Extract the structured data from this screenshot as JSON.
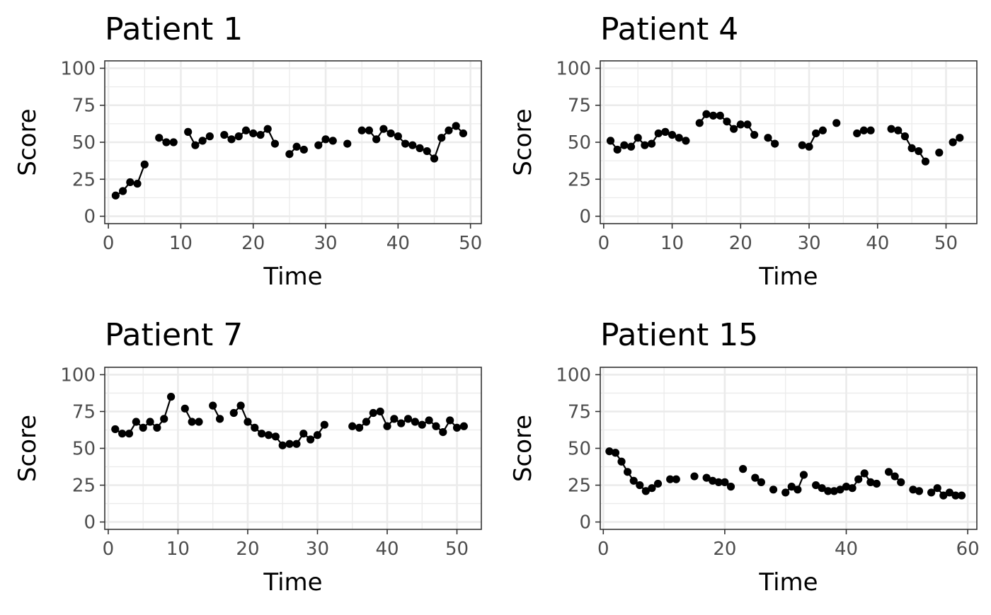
{
  "chart_data": [
    {
      "type": "line",
      "title": "Patient 1",
      "xlabel": "Time",
      "ylabel": "Score",
      "xlim": [
        -0.5,
        51.5
      ],
      "ylim": [
        -5,
        105
      ],
      "xticks": [
        0,
        10,
        20,
        30,
        40,
        50
      ],
      "yticks": [
        0,
        25,
        50,
        75,
        100
      ],
      "grid": true,
      "points": [
        [
          1,
          14
        ],
        [
          2,
          17
        ],
        [
          3,
          23
        ],
        [
          4,
          22
        ],
        [
          5,
          35
        ],
        [
          7,
          53
        ],
        [
          8,
          50
        ],
        [
          9,
          50
        ],
        [
          11,
          57
        ],
        [
          12,
          48
        ],
        [
          13,
          51
        ],
        [
          14,
          54
        ],
        [
          16,
          55
        ],
        [
          17,
          52
        ],
        [
          18,
          54
        ],
        [
          19,
          58
        ],
        [
          20,
          56
        ],
        [
          21,
          55
        ],
        [
          22,
          59
        ],
        [
          23,
          49
        ],
        [
          25,
          42
        ],
        [
          26,
          47
        ],
        [
          27,
          45
        ],
        [
          29,
          48
        ],
        [
          30,
          52
        ],
        [
          31,
          51
        ],
        [
          33,
          49
        ],
        [
          35,
          58
        ],
        [
          36,
          58
        ],
        [
          37,
          52
        ],
        [
          38,
          59
        ],
        [
          39,
          56
        ],
        [
          40,
          54
        ],
        [
          41,
          49
        ],
        [
          42,
          48
        ],
        [
          43,
          46
        ],
        [
          44,
          44
        ],
        [
          45,
          39
        ],
        [
          46,
          53
        ],
        [
          47,
          58
        ],
        [
          48,
          61
        ],
        [
          49,
          56
        ]
      ]
    },
    {
      "type": "line",
      "title": "Patient 4",
      "xlabel": "Time",
      "ylabel": "Score",
      "xlim": [
        -0.5,
        54.5
      ],
      "ylim": [
        -5,
        105
      ],
      "xticks": [
        0,
        10,
        20,
        30,
        40,
        50
      ],
      "yticks": [
        0,
        25,
        50,
        75,
        100
      ],
      "grid": true,
      "points": [
        [
          1,
          51
        ],
        [
          2,
          45
        ],
        [
          3,
          48
        ],
        [
          4,
          47
        ],
        [
          5,
          53
        ],
        [
          6,
          48
        ],
        [
          7,
          49
        ],
        [
          8,
          56
        ],
        [
          9,
          57
        ],
        [
          10,
          55
        ],
        [
          11,
          53
        ],
        [
          12,
          51
        ],
        [
          14,
          63
        ],
        [
          15,
          69
        ],
        [
          16,
          68
        ],
        [
          17,
          68
        ],
        [
          18,
          64
        ],
        [
          19,
          59
        ],
        [
          20,
          62
        ],
        [
          21,
          62
        ],
        [
          22,
          55
        ],
        [
          24,
          53
        ],
        [
          25,
          49
        ],
        [
          29,
          48
        ],
        [
          30,
          47
        ],
        [
          31,
          56
        ],
        [
          32,
          58
        ],
        [
          34,
          63
        ],
        [
          37,
          56
        ],
        [
          38,
          58
        ],
        [
          39,
          58
        ],
        [
          42,
          59
        ],
        [
          43,
          58
        ],
        [
          44,
          54
        ],
        [
          45,
          46
        ],
        [
          46,
          44
        ],
        [
          47,
          37
        ],
        [
          49,
          43
        ],
        [
          51,
          50
        ],
        [
          52,
          53
        ]
      ]
    },
    {
      "type": "line",
      "title": "Patient 7",
      "xlabel": "Time",
      "ylabel": "Score",
      "xlim": [
        -0.5,
        53.5
      ],
      "ylim": [
        -5,
        105
      ],
      "xticks": [
        0,
        10,
        20,
        30,
        40,
        50
      ],
      "yticks": [
        0,
        25,
        50,
        75,
        100
      ],
      "grid": true,
      "points": [
        [
          1,
          63
        ],
        [
          2,
          60
        ],
        [
          3,
          60
        ],
        [
          4,
          68
        ],
        [
          5,
          64
        ],
        [
          6,
          68
        ],
        [
          7,
          64
        ],
        [
          8,
          70
        ],
        [
          9,
          85
        ],
        [
          11,
          77
        ],
        [
          12,
          68
        ],
        [
          13,
          68
        ],
        [
          15,
          79
        ],
        [
          16,
          70
        ],
        [
          18,
          74
        ],
        [
          19,
          79
        ],
        [
          20,
          68
        ],
        [
          21,
          64
        ],
        [
          22,
          60
        ],
        [
          23,
          59
        ],
        [
          24,
          58
        ],
        [
          25,
          52
        ],
        [
          26,
          53
        ],
        [
          27,
          53
        ],
        [
          28,
          60
        ],
        [
          29,
          56
        ],
        [
          30,
          59
        ],
        [
          31,
          66
        ],
        [
          35,
          65
        ],
        [
          36,
          64
        ],
        [
          37,
          68
        ],
        [
          38,
          74
        ],
        [
          39,
          75
        ],
        [
          40,
          65
        ],
        [
          41,
          70
        ],
        [
          42,
          67
        ],
        [
          43,
          70
        ],
        [
          44,
          68
        ],
        [
          45,
          66
        ],
        [
          46,
          69
        ],
        [
          47,
          65
        ],
        [
          48,
          61
        ],
        [
          49,
          69
        ],
        [
          50,
          64
        ],
        [
          51,
          65
        ]
      ]
    },
    {
      "type": "line",
      "title": "Patient 15",
      "xlabel": "Time",
      "ylabel": "Score",
      "xlim": [
        -0.5,
        61.5
      ],
      "ylim": [
        -5,
        105
      ],
      "xticks": [
        0,
        20,
        40,
        60
      ],
      "yticks": [
        0,
        25,
        50,
        75,
        100
      ],
      "grid": true,
      "points": [
        [
          1,
          48
        ],
        [
          2,
          47
        ],
        [
          3,
          41
        ],
        [
          4,
          34
        ],
        [
          5,
          28
        ],
        [
          6,
          25
        ],
        [
          7,
          21
        ],
        [
          8,
          23
        ],
        [
          9,
          26
        ],
        [
          11,
          29
        ],
        [
          12,
          29
        ],
        [
          15,
          31
        ],
        [
          17,
          30
        ],
        [
          18,
          28
        ],
        [
          19,
          27
        ],
        [
          20,
          27
        ],
        [
          21,
          24
        ],
        [
          23,
          36
        ],
        [
          25,
          30
        ],
        [
          26,
          27
        ],
        [
          28,
          22
        ],
        [
          30,
          20
        ],
        [
          31,
          24
        ],
        [
          32,
          22
        ],
        [
          33,
          32
        ],
        [
          35,
          25
        ],
        [
          36,
          23
        ],
        [
          37,
          21
        ],
        [
          38,
          21
        ],
        [
          39,
          22
        ],
        [
          40,
          24
        ],
        [
          41,
          23
        ],
        [
          42,
          29
        ],
        [
          43,
          33
        ],
        [
          44,
          27
        ],
        [
          45,
          26
        ],
        [
          47,
          34
        ],
        [
          48,
          31
        ],
        [
          49,
          27
        ],
        [
          51,
          22
        ],
        [
          52,
          21
        ],
        [
          54,
          20
        ],
        [
          55,
          23
        ],
        [
          56,
          18
        ],
        [
          57,
          20
        ],
        [
          58,
          18
        ],
        [
          59,
          18
        ]
      ]
    }
  ]
}
